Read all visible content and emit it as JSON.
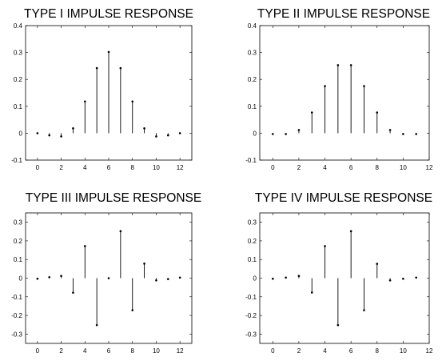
{
  "chart_data": [
    {
      "type": "stem",
      "title": "TYPE I IMPULSE RESPONSE",
      "xlim": [
        -1,
        13
      ],
      "ylim": [
        -0.1,
        0.4
      ],
      "xticks": [
        0,
        2,
        4,
        6,
        8,
        10,
        12
      ],
      "yticks": [
        -0.1,
        0,
        0.1,
        0.2,
        0.3,
        0.4
      ],
      "ytick_labels": [
        "-0.1",
        "0",
        "0.1",
        "0.2",
        "0.3",
        "0.4"
      ],
      "x": [
        0,
        1,
        2,
        3,
        4,
        5,
        6,
        7,
        8,
        9,
        10,
        11,
        12
      ],
      "values": [
        0.0,
        -0.008,
        -0.012,
        0.018,
        0.118,
        0.242,
        0.302,
        0.242,
        0.118,
        0.018,
        -0.012,
        -0.008,
        0.0
      ]
    },
    {
      "type": "stem",
      "title": "TYPE II IMPULSE RESPONSE",
      "xlim": [
        -1,
        12
      ],
      "ylim": [
        -0.1,
        0.4
      ],
      "xticks": [
        0,
        2,
        4,
        6,
        8,
        10,
        12
      ],
      "yticks": [
        -0.1,
        0,
        0.1,
        0.2,
        0.3,
        0.4
      ],
      "ytick_labels": [
        "-0.1",
        "0",
        "0.1",
        "0.2",
        "0.3",
        "0.4"
      ],
      "x": [
        0,
        1,
        2,
        3,
        4,
        5,
        6,
        7,
        8,
        9,
        10,
        11
      ],
      "values": [
        -0.003,
        -0.003,
        0.012,
        0.077,
        0.175,
        0.253,
        0.253,
        0.175,
        0.077,
        0.012,
        -0.003,
        -0.003
      ]
    },
    {
      "type": "stem",
      "title": "TYPE III IMPULSE RESPONSE",
      "xlim": [
        -1,
        13
      ],
      "ylim": [
        -0.35,
        0.35
      ],
      "xticks": [
        0,
        2,
        4,
        6,
        8,
        10,
        12
      ],
      "yticks": [
        -0.3,
        -0.2,
        -0.1,
        0,
        0.1,
        0.2,
        0.3
      ],
      "ytick_labels": [
        "-0.3",
        "-0.2",
        "-0.1",
        "0",
        "0.1",
        "0.2",
        "0.3"
      ],
      "x": [
        0,
        1,
        2,
        3,
        4,
        5,
        6,
        7,
        8,
        9,
        10,
        11,
        12
      ],
      "values": [
        -0.003,
        0.005,
        0.012,
        -0.078,
        0.172,
        -0.252,
        0.0,
        0.252,
        -0.172,
        0.078,
        -0.012,
        -0.005,
        0.003
      ]
    },
    {
      "type": "stem",
      "title": "TYPE IV IMPULSE RESPONSE",
      "xlim": [
        -1,
        12
      ],
      "ylim": [
        -0.35,
        0.35
      ],
      "xticks": [
        0,
        2,
        4,
        6,
        8,
        10,
        12
      ],
      "yticks": [
        -0.3,
        -0.2,
        -0.1,
        0,
        0.1,
        0.2,
        0.3
      ],
      "ytick_labels": [
        "-0.3",
        "-0.2",
        "-0.1",
        "0",
        "0.1",
        "0.2",
        "0.3"
      ],
      "x": [
        0,
        1,
        2,
        3,
        4,
        5,
        6,
        7,
        8,
        9,
        10,
        11
      ],
      "values": [
        -0.003,
        0.003,
        0.012,
        -0.077,
        0.172,
        -0.252,
        0.252,
        -0.172,
        0.077,
        -0.012,
        -0.003,
        0.003
      ]
    }
  ]
}
